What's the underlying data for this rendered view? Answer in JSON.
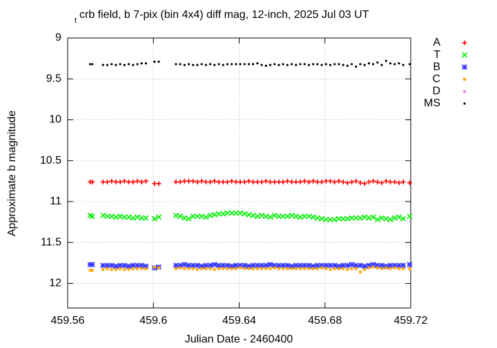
{
  "chart_data": {
    "type": "scatter",
    "title": {
      "subscript": "t",
      "text": "crb field, b 7-pix (bin 4x4) diff mag, 12-inch, 2025 Jul 03 UT"
    },
    "x_label": "Julian Date - 2460400",
    "y_label": "Approximate b magnitude",
    "xlim": [
      459.56,
      459.72
    ],
    "xticks": [
      459.56,
      459.6,
      459.64,
      459.68,
      459.72
    ],
    "ylim": [
      9,
      12.3
    ],
    "yticks": [
      9,
      9.5,
      10,
      10.5,
      11,
      11.5,
      12
    ],
    "y_inverted": true,
    "grid": true,
    "legend": "right",
    "x": [
      459.5705,
      459.5715,
      459.5765,
      459.5785,
      459.5805,
      459.5825,
      459.5845,
      459.5865,
      459.5885,
      459.5905,
      459.5925,
      459.5945,
      459.5965,
      459.6005,
      459.6025,
      459.6105,
      459.6125,
      459.6145,
      459.6165,
      459.6185,
      459.6205,
      459.6225,
      459.6245,
      459.6265,
      459.6285,
      459.6305,
      459.6325,
      459.6345,
      459.6365,
      459.6385,
      459.6405,
      459.6425,
      459.6445,
      459.6465,
      459.6485,
      459.6505,
      459.6525,
      459.6545,
      459.6565,
      459.6585,
      459.6605,
      459.6625,
      459.6645,
      459.6665,
      459.6685,
      459.6705,
      459.6725,
      459.6745,
      459.6765,
      459.6785,
      459.6805,
      459.6825,
      459.6845,
      459.6865,
      459.6885,
      459.6905,
      459.6925,
      459.6945,
      459.6965,
      459.6985,
      459.7005,
      459.7025,
      459.7045,
      459.7065,
      459.7085,
      459.7105,
      459.7125,
      459.7145,
      459.7165,
      459.7195
    ],
    "series": [
      {
        "name": "A",
        "color": "#ff0000",
        "marker": "plus",
        "values": [
          10.76,
          10.76,
          10.76,
          10.76,
          10.75,
          10.76,
          10.76,
          10.75,
          10.76,
          10.76,
          10.75,
          10.76,
          10.75,
          10.78,
          10.78,
          10.76,
          10.76,
          10.75,
          10.75,
          10.75,
          10.76,
          10.75,
          10.76,
          10.76,
          10.75,
          10.76,
          10.76,
          10.76,
          10.75,
          10.76,
          10.76,
          10.76,
          10.75,
          10.76,
          10.76,
          10.76,
          10.75,
          10.76,
          10.76,
          10.76,
          10.76,
          10.75,
          10.76,
          10.76,
          10.76,
          10.75,
          10.76,
          10.75,
          10.76,
          10.76,
          10.75,
          10.75,
          10.76,
          10.75,
          10.76,
          10.77,
          10.76,
          10.75,
          10.77,
          10.78,
          10.76,
          10.75,
          10.76,
          10.77,
          10.75,
          10.76,
          10.76,
          10.77,
          10.76,
          10.77
        ]
      },
      {
        "name": "T",
        "color": "#00ee00",
        "marker": "cross",
        "values": [
          11.17,
          11.18,
          11.17,
          11.18,
          11.18,
          11.19,
          11.18,
          11.19,
          11.19,
          11.2,
          11.19,
          11.2,
          11.2,
          11.21,
          11.19,
          11.17,
          11.18,
          11.2,
          11.21,
          11.18,
          11.18,
          11.18,
          11.19,
          11.17,
          11.16,
          11.15,
          11.15,
          11.14,
          11.14,
          11.14,
          11.14,
          11.15,
          11.16,
          11.17,
          11.18,
          11.17,
          11.18,
          11.19,
          11.17,
          11.18,
          11.18,
          11.18,
          11.17,
          11.18,
          11.19,
          11.18,
          11.18,
          11.19,
          11.2,
          11.21,
          11.22,
          11.22,
          11.22,
          11.21,
          11.21,
          11.21,
          11.2,
          11.2,
          11.2,
          11.19,
          11.2,
          11.19,
          11.22,
          11.2,
          11.21,
          11.22,
          11.2,
          11.19,
          11.21,
          11.18
        ]
      },
      {
        "name": "B",
        "color": "#3a3aff",
        "marker": "star",
        "values": [
          11.77,
          11.77,
          11.78,
          11.78,
          11.78,
          11.79,
          11.78,
          11.78,
          11.79,
          11.78,
          11.78,
          11.78,
          11.79,
          11.81,
          11.8,
          11.78,
          11.78,
          11.77,
          11.78,
          11.78,
          11.78,
          11.79,
          11.78,
          11.78,
          11.77,
          11.78,
          11.78,
          11.78,
          11.79,
          11.78,
          11.78,
          11.78,
          11.79,
          11.78,
          11.78,
          11.78,
          11.78,
          11.77,
          11.78,
          11.78,
          11.78,
          11.78,
          11.79,
          11.78,
          11.78,
          11.78,
          11.78,
          11.79,
          11.78,
          11.78,
          11.78,
          11.78,
          11.78,
          11.79,
          11.78,
          11.78,
          11.77,
          11.78,
          11.78,
          11.79,
          11.78,
          11.77,
          11.78,
          11.78,
          11.79,
          11.78,
          11.78,
          11.78,
          11.78,
          11.77
        ]
      },
      {
        "name": "C",
        "color": "#ffa500",
        "marker": "square",
        "values": [
          11.84,
          11.84,
          11.83,
          11.82,
          11.83,
          11.83,
          11.82,
          11.83,
          11.83,
          11.82,
          11.82,
          11.82,
          11.82,
          11.8,
          11.81,
          11.82,
          11.81,
          11.82,
          11.82,
          11.82,
          11.83,
          11.82,
          11.82,
          11.82,
          11.83,
          11.82,
          11.82,
          11.82,
          11.82,
          11.82,
          11.81,
          11.82,
          11.82,
          11.82,
          11.82,
          11.82,
          11.82,
          11.82,
          11.81,
          11.82,
          11.82,
          11.82,
          11.82,
          11.82,
          11.82,
          11.82,
          11.82,
          11.82,
          11.82,
          11.81,
          11.82,
          11.83,
          11.82,
          11.82,
          11.82,
          11.83,
          11.82,
          11.82,
          11.86,
          11.83,
          11.81,
          11.8,
          11.81,
          11.82,
          11.81,
          11.82,
          11.81,
          11.82,
          11.82,
          11.82
        ]
      },
      {
        "name": "D",
        "color": "#ee82ee",
        "marker": "square",
        "values": [
          null,
          null,
          null,
          null,
          null,
          null,
          null,
          null,
          null,
          null,
          null,
          null,
          null,
          null,
          null,
          null,
          null,
          null,
          null,
          null,
          null,
          null,
          null,
          null,
          null,
          null,
          null,
          null,
          null,
          null,
          null,
          null,
          null,
          null,
          null,
          null,
          null,
          null,
          null,
          null,
          null,
          null,
          null,
          null,
          null,
          null,
          null,
          null,
          null,
          null,
          null,
          null,
          null,
          null,
          null,
          null,
          null,
          null,
          null,
          null,
          null,
          null,
          null,
          null,
          null,
          null,
          null,
          null,
          null,
          null
        ]
      },
      {
        "name": "MS",
        "color": "#000000",
        "marker": "dot",
        "values": [
          9.32,
          9.32,
          9.33,
          9.33,
          9.32,
          9.33,
          9.32,
          9.33,
          9.32,
          9.33,
          9.32,
          9.31,
          9.31,
          9.29,
          9.29,
          9.32,
          9.32,
          9.33,
          9.32,
          9.33,
          9.33,
          9.32,
          9.33,
          9.32,
          9.33,
          9.32,
          9.33,
          9.32,
          9.32,
          9.32,
          9.32,
          9.32,
          9.32,
          9.32,
          9.31,
          9.33,
          9.34,
          9.33,
          9.32,
          9.33,
          9.32,
          9.33,
          9.32,
          9.33,
          9.32,
          9.32,
          9.33,
          9.32,
          9.32,
          9.33,
          9.32,
          9.33,
          9.32,
          9.32,
          9.33,
          9.34,
          9.32,
          9.35,
          9.32,
          9.33,
          9.31,
          9.32,
          9.3,
          9.33,
          9.28,
          9.31,
          9.32,
          9.31,
          9.33,
          9.32
        ]
      }
    ]
  }
}
